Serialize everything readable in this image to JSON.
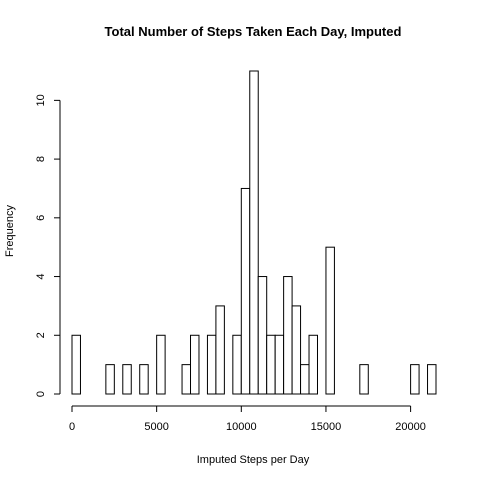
{
  "chart_data": {
    "type": "bar",
    "title": "Total Number of Steps Taken Each Day, Imputed",
    "xlabel": "Imputed Steps per Day",
    "ylabel": "Frequency",
    "bin_width": 500,
    "x_range": [
      0,
      21500
    ],
    "xlim": [
      0,
      21500
    ],
    "ylim": [
      0,
      11
    ],
    "x_ticks": [
      0,
      5000,
      10000,
      15000,
      20000
    ],
    "y_ticks": [
      0,
      2,
      4,
      6,
      8,
      10
    ],
    "bins": [
      {
        "x0": 0,
        "x1": 500,
        "count": 2
      },
      {
        "x0": 2000,
        "x1": 2500,
        "count": 1
      },
      {
        "x0": 3000,
        "x1": 3500,
        "count": 1
      },
      {
        "x0": 4000,
        "x1": 4500,
        "count": 1
      },
      {
        "x0": 5000,
        "x1": 5500,
        "count": 2
      },
      {
        "x0": 6500,
        "x1": 7000,
        "count": 1
      },
      {
        "x0": 7000,
        "x1": 7500,
        "count": 2
      },
      {
        "x0": 8000,
        "x1": 8500,
        "count": 2
      },
      {
        "x0": 8500,
        "x1": 9000,
        "count": 3
      },
      {
        "x0": 9500,
        "x1": 10000,
        "count": 2
      },
      {
        "x0": 10000,
        "x1": 10500,
        "count": 7
      },
      {
        "x0": 10500,
        "x1": 11000,
        "count": 11
      },
      {
        "x0": 11000,
        "x1": 11500,
        "count": 4
      },
      {
        "x0": 11500,
        "x1": 12000,
        "count": 2
      },
      {
        "x0": 12000,
        "x1": 12500,
        "count": 2
      },
      {
        "x0": 12500,
        "x1": 13000,
        "count": 4
      },
      {
        "x0": 13000,
        "x1": 13500,
        "count": 3
      },
      {
        "x0": 13500,
        "x1": 14000,
        "count": 1
      },
      {
        "x0": 14000,
        "x1": 14500,
        "count": 2
      },
      {
        "x0": 15000,
        "x1": 15500,
        "count": 5
      },
      {
        "x0": 17000,
        "x1": 17500,
        "count": 1
      },
      {
        "x0": 20000,
        "x1": 20500,
        "count": 1
      },
      {
        "x0": 21000,
        "x1": 21500,
        "count": 1
      }
    ],
    "colors": {
      "bar_fill": "#ffffff",
      "bar_stroke": "#000000"
    }
  }
}
